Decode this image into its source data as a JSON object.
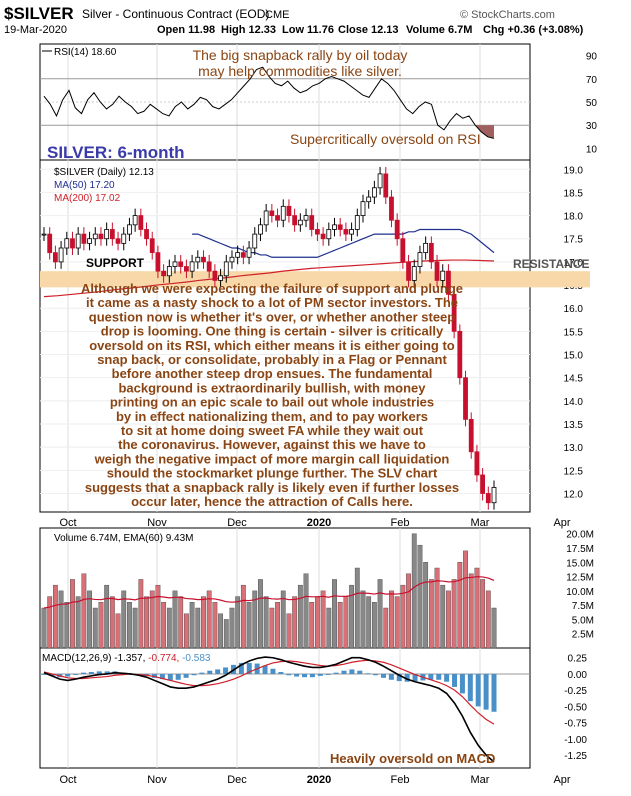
{
  "header": {
    "symbol": "$SILVER",
    "contract": "Silver - Continuous Contract (EOD)",
    "exchange": "CME",
    "date": "19-Mar-2020",
    "open_label": "Open",
    "open": "11.98",
    "high_label": "High",
    "high": "12.33",
    "low_label": "Low",
    "low": "11.76",
    "close_label": "Close",
    "close": "12.13",
    "volume_label": "Volume",
    "volume": "6.7M",
    "chg_label": "Chg",
    "chg": "+0.36 (+3.08%)",
    "watermark": "© StockCharts.com"
  },
  "annotations": {
    "rsi_note_line1": "The big snapback rally by oil today",
    "rsi_note_line2": "may help commodities like silver.",
    "rsi_oversold": "Supercritically oversold on RSI",
    "title": "SILVER: 6-month",
    "support": "SUPPORT",
    "resistance": "RESISTANCE",
    "macd_note": "Heavily oversold on MACD",
    "commentary": [
      "Although we were expecting the failure of support and plunge",
      "it came as a nasty shock to a lot of PM sector investors. The",
      "question now is whether it's over, or whether another steep",
      "drop is looming. One thing is certain - silver is critically",
      "oversold on its RSI, which either means it is either going to",
      "snap back, or consolidate, probably in a Flag or Pennant",
      "before another steep drop ensues. The fundamental",
      "background is extraordinarily bullish, with money",
      "printing on an epic scale to bail out whole industries",
      "by in effect nationalizing them, and to pay workers",
      "to sit at home doing sweet FA while they wait out",
      "the coronavirus. However, against this we have to",
      "weigh the negative impact of more margin call liquidation",
      "should the stockmarket plunge further. The SLV chart",
      "suggests that a snapback rally is likely even if further losses",
      "occur later, hence the attraction of Calls here."
    ]
  },
  "colors": {
    "up": "#000000",
    "down": "#c8102e",
    "ma50": "#1f2f8f",
    "ma200": "#d0202a",
    "note_text": "#8b4513",
    "title_text": "#3a3aa8",
    "support_band": "#f8d8a8",
    "rsi_fill": "#a06060",
    "vol_up": "#888888",
    "vol_down": "#d87078",
    "macd_hist": "#4a90c8",
    "ema_vol": "#c8102e"
  },
  "chart_data": [
    {
      "type": "line",
      "title": "RSI(14) 18.60",
      "ylim": [
        0,
        100
      ],
      "y_ticks": [
        "90",
        "70",
        "50",
        "30",
        "10"
      ],
      "levels": [
        70,
        30
      ],
      "values": [
        55,
        48,
        38,
        52,
        60,
        45,
        40,
        52,
        58,
        50,
        44,
        48,
        55,
        50,
        46,
        40,
        42,
        48,
        44,
        40,
        38,
        46,
        50,
        44,
        48,
        54,
        52,
        46,
        44,
        48,
        52,
        58,
        64,
        70,
        78,
        80,
        72,
        66,
        64,
        68,
        62,
        58,
        60,
        64,
        66,
        70,
        72,
        70,
        68,
        64,
        60,
        56,
        54,
        62,
        70,
        66,
        60,
        52,
        44,
        40,
        46,
        50,
        48,
        30,
        26,
        34,
        40,
        36,
        38,
        30,
        24,
        20,
        18.6
      ]
    },
    {
      "type": "candlestick",
      "title": "$SILVER (Daily) 12.13",
      "series_labels": [
        "MA(50) 17.20",
        "MA(200) 17.02"
      ],
      "x_labels": [
        "Oct",
        "Nov",
        "Dec",
        "2020",
        "Feb",
        "Mar",
        "Apr"
      ],
      "y_ticks": [
        "19.0",
        "18.5",
        "18.0",
        "17.5",
        "17.0",
        "16.5",
        "16.0",
        "15.5",
        "15.0",
        "14.5",
        "14.0",
        "13.5",
        "13.0",
        "12.5",
        "12.0"
      ],
      "ylim": [
        11.6,
        19.2
      ],
      "support_range": [
        16.45,
        16.8
      ],
      "closes": [
        17.6,
        17.2,
        17.0,
        17.3,
        17.5,
        17.3,
        17.6,
        17.4,
        17.5,
        17.6,
        17.5,
        17.7,
        17.5,
        17.4,
        17.6,
        17.8,
        18.0,
        17.7,
        17.5,
        17.2,
        16.8,
        16.7,
        16.9,
        17.0,
        16.9,
        16.8,
        17.0,
        17.1,
        17.0,
        16.8,
        16.6,
        16.7,
        17.0,
        17.1,
        17.2,
        17.1,
        17.3,
        17.6,
        17.8,
        18.1,
        18.0,
        17.9,
        18.2,
        18.0,
        17.8,
        17.9,
        18.0,
        17.7,
        17.6,
        17.5,
        17.7,
        17.8,
        17.7,
        17.6,
        17.7,
        18.0,
        18.3,
        18.4,
        18.6,
        18.9,
        18.4,
        17.9,
        17.5,
        17.0,
        16.6,
        16.9,
        17.2,
        17.4,
        17.0,
        16.6,
        16.8,
        16.3,
        15.5,
        14.5,
        13.6,
        12.9,
        12.4,
        12.0,
        11.8,
        12.13
      ],
      "ma50": [
        17.6,
        17.6,
        17.55,
        17.5,
        17.45,
        17.4,
        17.35,
        17.3,
        17.3,
        17.25,
        17.2,
        17.2,
        17.15,
        17.15,
        17.1,
        17.1,
        17.1,
        17.1,
        17.1,
        17.1,
        17.1,
        17.1,
        17.1,
        17.15,
        17.2,
        17.25,
        17.3,
        17.35,
        17.4,
        17.45,
        17.5,
        17.55,
        17.6,
        17.6,
        17.6,
        17.6,
        17.6,
        17.6,
        17.65,
        17.65,
        17.7,
        17.7,
        17.7,
        17.7,
        17.7,
        17.7,
        17.7,
        17.7,
        17.65,
        17.6,
        17.5,
        17.4,
        17.3,
        17.2
      ],
      "ma200": [
        16.25,
        16.27,
        16.3,
        16.33,
        16.36,
        16.4,
        16.43,
        16.46,
        16.5,
        16.53,
        16.56,
        16.6,
        16.63,
        16.66,
        16.7,
        16.73,
        16.76,
        16.8,
        16.83,
        16.86,
        16.88,
        16.9,
        16.92,
        16.94,
        16.96,
        16.98,
        17.0,
        17.02,
        17.03,
        17.04,
        17.04,
        17.03,
        17.02
      ]
    },
    {
      "type": "bar",
      "title": "Volume 6.74M, EMA(60) 9.43M",
      "y_ticks": [
        "20.0M",
        "17.5M",
        "15.0M",
        "12.5M",
        "10.0M",
        "7.5M",
        "5.0M",
        "2.5M"
      ],
      "ylim": [
        0,
        21
      ],
      "values": [
        7,
        9,
        11,
        10,
        8,
        12,
        9,
        13,
        10,
        7,
        8,
        11,
        9,
        6,
        10,
        8,
        7,
        12,
        9,
        10,
        11,
        8,
        7,
        10,
        9,
        6,
        8,
        7,
        9,
        10,
        8,
        6,
        5,
        7,
        9,
        11,
        8,
        10,
        12,
        9,
        7,
        8,
        10,
        6,
        9,
        11,
        13,
        8,
        9,
        10,
        7,
        12,
        8,
        9,
        11,
        14,
        10,
        9,
        8,
        12,
        7,
        10,
        9,
        11,
        13,
        20,
        18,
        15,
        12,
        14,
        11,
        10,
        12,
        15,
        17,
        13,
        14,
        12,
        10,
        7
      ]
    },
    {
      "type": "line",
      "title": "MACD(12,26,9) -1.357, -0.774, -0.583",
      "series_labels": [
        "MACD(12,26,9) -1.357",
        "-0.774",
        "-0.583"
      ],
      "x_labels": [
        "Oct",
        "Nov",
        "Dec",
        "2020",
        "Feb",
        "Mar",
        "Apr"
      ],
      "y_ticks": [
        "0.25",
        "0.00",
        "-0.25",
        "-0.50",
        "-0.75",
        "-1.00",
        "-1.25"
      ],
      "ylim": [
        -1.45,
        0.4
      ],
      "macd": [
        0.02,
        -0.03,
        -0.08,
        -0.1,
        -0.08,
        -0.05,
        -0.03,
        -0.01,
        0.0,
        0.02,
        0.01,
        0.0,
        -0.02,
        -0.05,
        -0.1,
        -0.15,
        -0.2,
        -0.22,
        -0.22,
        -0.2,
        -0.16,
        -0.12,
        -0.08,
        -0.02,
        0.06,
        0.14,
        0.2,
        0.24,
        0.26,
        0.25,
        0.22,
        0.18,
        0.15,
        0.12,
        0.1,
        0.1,
        0.12,
        0.15,
        0.2,
        0.25,
        0.25,
        0.22,
        0.18,
        0.12,
        0.05,
        -0.02,
        -0.08,
        -0.12,
        -0.15,
        -0.18,
        -0.22,
        -0.3,
        -0.45,
        -0.65,
        -0.9,
        -1.1,
        -1.25,
        -1.357
      ],
      "signal": [
        0.03,
        0.0,
        -0.03,
        -0.06,
        -0.07,
        -0.07,
        -0.06,
        -0.05,
        -0.04,
        -0.02,
        -0.01,
        0.0,
        -0.01,
        -0.02,
        -0.04,
        -0.07,
        -0.1,
        -0.13,
        -0.16,
        -0.18,
        -0.18,
        -0.17,
        -0.15,
        -0.12,
        -0.08,
        -0.03,
        0.03,
        0.08,
        0.13,
        0.17,
        0.19,
        0.2,
        0.19,
        0.17,
        0.15,
        0.13,
        0.12,
        0.13,
        0.15,
        0.18,
        0.2,
        0.21,
        0.2,
        0.18,
        0.14,
        0.09,
        0.04,
        -0.01,
        -0.05,
        -0.09,
        -0.13,
        -0.18,
        -0.25,
        -0.35,
        -0.48,
        -0.6,
        -0.7,
        -0.774
      ]
    }
  ]
}
